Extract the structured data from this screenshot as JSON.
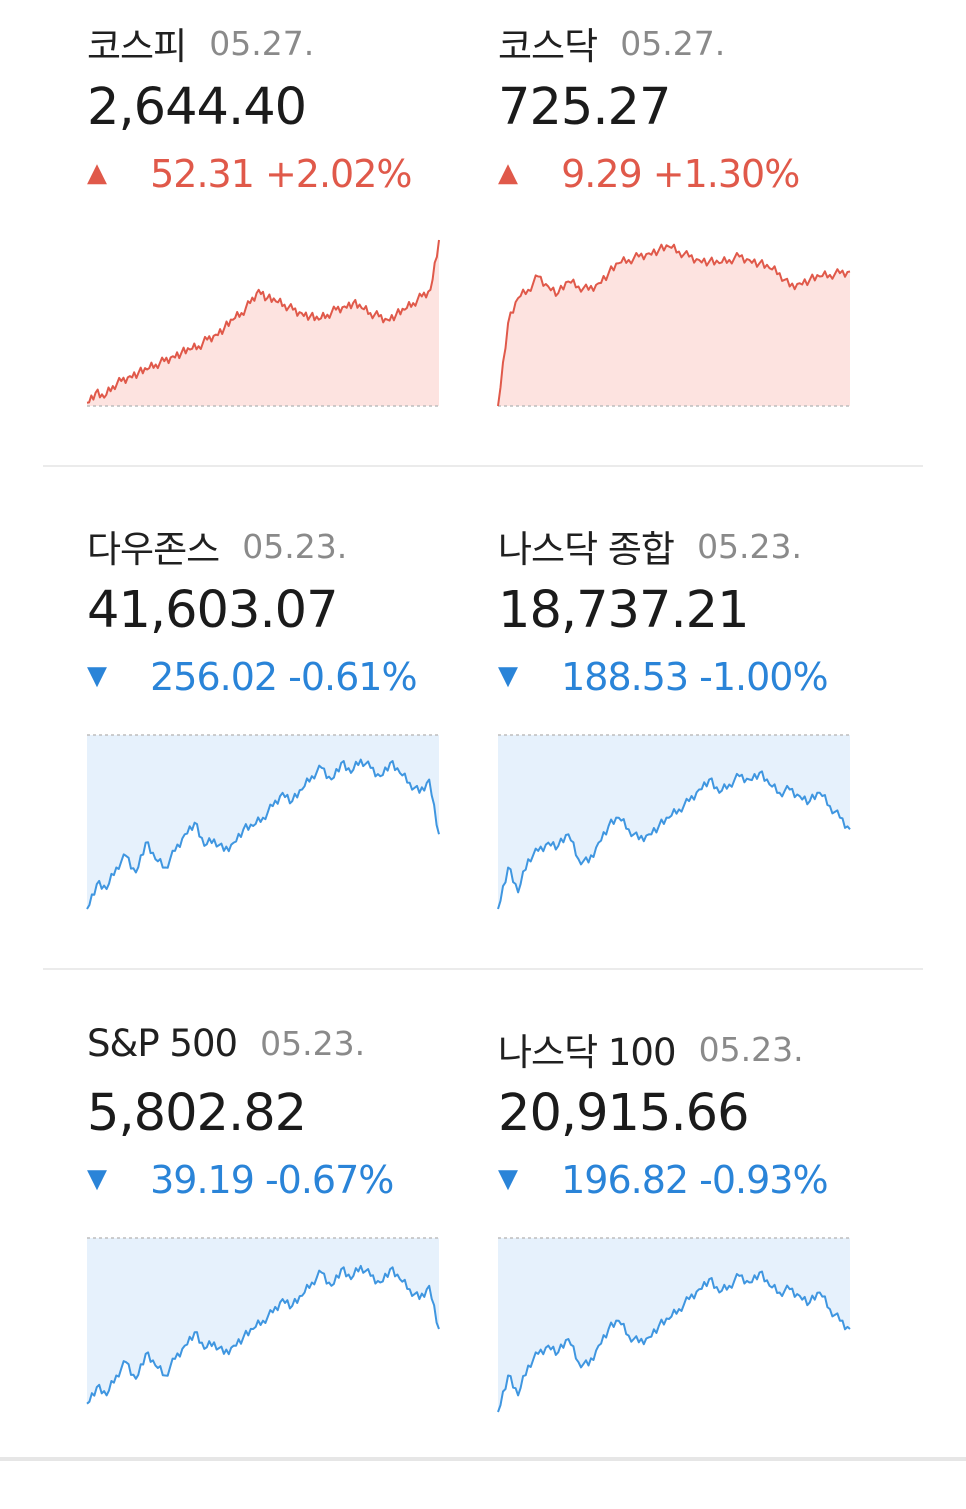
{
  "indices": [
    {
      "name": "코스피",
      "date": "05.27.",
      "value": "2,644.40",
      "change": "52.31 +2.02%",
      "direction": "up",
      "arrow": "▲",
      "color": "#e0594a",
      "fill": "#fde3e0",
      "series": [
        0.02,
        0.08,
        0.05,
        0.12,
        0.15,
        0.18,
        0.2,
        0.22,
        0.25,
        0.27,
        0.3,
        0.32,
        0.34,
        0.36,
        0.4,
        0.43,
        0.47,
        0.52,
        0.56,
        0.62,
        0.7,
        0.65,
        0.63,
        0.61,
        0.58,
        0.56,
        0.54,
        0.52,
        0.55,
        0.58,
        0.6,
        0.62,
        0.59,
        0.56,
        0.54,
        0.52,
        0.55,
        0.58,
        0.62,
        0.66,
        0.7,
        1.0
      ]
    },
    {
      "name": "코스닥",
      "date": "05.27.",
      "value": "725.27",
      "change": "9.29 +1.30%",
      "direction": "up",
      "arrow": "▲",
      "color": "#e0594a",
      "fill": "#fde3e0",
      "series": [
        0.0,
        0.5,
        0.65,
        0.7,
        0.78,
        0.72,
        0.68,
        0.75,
        0.72,
        0.7,
        0.74,
        0.8,
        0.86,
        0.88,
        0.9,
        0.92,
        0.94,
        0.96,
        0.93,
        0.9,
        0.88,
        0.87,
        0.86,
        0.88,
        0.9,
        0.88,
        0.86,
        0.83,
        0.8,
        0.72,
        0.74,
        0.76,
        0.78,
        0.79,
        0.8,
        0.81
      ]
    },
    {
      "name": "다우존스",
      "date": "05.23.",
      "value": "41,603.07",
      "change": "256.02 -0.61%",
      "direction": "down",
      "arrow": "▼",
      "color": "#3f96e0",
      "fill": "#e6f1fc",
      "series": [
        0.0,
        0.15,
        0.12,
        0.25,
        0.32,
        0.22,
        0.4,
        0.3,
        0.25,
        0.35,
        0.45,
        0.52,
        0.38,
        0.42,
        0.35,
        0.4,
        0.48,
        0.5,
        0.55,
        0.62,
        0.7,
        0.65,
        0.72,
        0.8,
        0.85,
        0.78,
        0.88,
        0.82,
        0.9,
        0.85,
        0.8,
        0.88,
        0.82,
        0.76,
        0.7,
        0.78,
        0.45
      ]
    },
    {
      "name": "나스닥 종합",
      "date": "05.23.",
      "value": "18,737.21",
      "change": "188.53 -1.00%",
      "direction": "down",
      "arrow": "▼",
      "color": "#3f96e0",
      "fill": "#e6f1fc",
      "series": [
        0.0,
        0.25,
        0.1,
        0.3,
        0.35,
        0.4,
        0.38,
        0.45,
        0.3,
        0.28,
        0.4,
        0.5,
        0.55,
        0.48,
        0.42,
        0.45,
        0.5,
        0.55,
        0.6,
        0.65,
        0.72,
        0.78,
        0.7,
        0.75,
        0.8,
        0.78,
        0.82,
        0.75,
        0.7,
        0.72,
        0.68,
        0.65,
        0.7,
        0.62,
        0.55,
        0.48
      ]
    },
    {
      "name": "S&P 500",
      "date": "05.23.",
      "value": "5,802.82",
      "change": "39.19 -0.67%",
      "direction": "down",
      "arrow": "▼",
      "color": "#3f96e0",
      "fill": "#e6f1fc",
      "series": [
        0.05,
        0.15,
        0.1,
        0.22,
        0.3,
        0.2,
        0.35,
        0.28,
        0.22,
        0.32,
        0.4,
        0.48,
        0.38,
        0.42,
        0.35,
        0.4,
        0.45,
        0.5,
        0.55,
        0.6,
        0.68,
        0.64,
        0.7,
        0.78,
        0.84,
        0.76,
        0.86,
        0.8,
        0.88,
        0.82,
        0.78,
        0.86,
        0.8,
        0.74,
        0.68,
        0.76,
        0.5
      ]
    },
    {
      "name": "나스닥 100",
      "date": "05.23.",
      "value": "20,915.66",
      "change": "196.82 -0.93%",
      "direction": "down",
      "arrow": "▼",
      "color": "#3f96e0",
      "fill": "#e6f1fc",
      "series": [
        0.0,
        0.22,
        0.1,
        0.28,
        0.35,
        0.4,
        0.36,
        0.44,
        0.3,
        0.28,
        0.4,
        0.5,
        0.55,
        0.46,
        0.42,
        0.45,
        0.52,
        0.56,
        0.62,
        0.68,
        0.74,
        0.8,
        0.72,
        0.76,
        0.82,
        0.78,
        0.84,
        0.76,
        0.72,
        0.74,
        0.7,
        0.66,
        0.72,
        0.62,
        0.55,
        0.5
      ]
    }
  ]
}
